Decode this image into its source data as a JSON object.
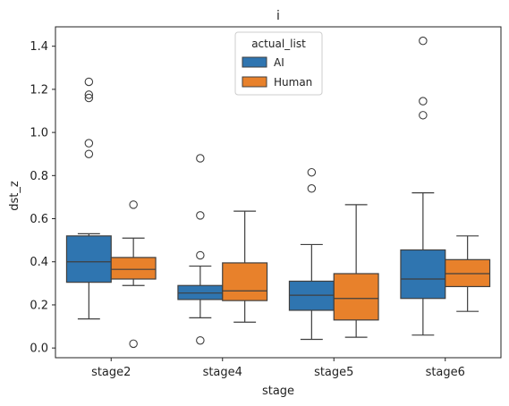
{
  "chart_data": {
    "type": "box",
    "title": "i",
    "xlabel": "stage",
    "ylabel": "dst_z",
    "categories": [
      "stage2",
      "stage4",
      "stage5",
      "stage6"
    ],
    "ylim": [
      -0.045,
      1.49
    ],
    "yticks": [
      0.0,
      0.2,
      0.4,
      0.6,
      0.8,
      1.0,
      1.2,
      1.4
    ],
    "ytick_labels": [
      "0.0",
      "0.2",
      "0.4",
      "0.6",
      "0.8",
      "1.0",
      "1.2",
      "1.4"
    ],
    "grid": false,
    "legend": {
      "title": "actual_list",
      "placement": "top-center",
      "entries": [
        "AI",
        "Human"
      ]
    },
    "series": [
      {
        "name": "AI",
        "color": "#2f75b0",
        "boxes": [
          {
            "whisker_low": 0.135,
            "q1": 0.305,
            "median": 0.4,
            "q3": 0.52,
            "whisker_high": 0.53,
            "outliers": [
              1.235,
              1.175,
              1.16,
              0.95,
              0.9
            ]
          },
          {
            "whisker_low": 0.14,
            "q1": 0.225,
            "median": 0.255,
            "q3": 0.29,
            "whisker_high": 0.38,
            "outliers": [
              0.88,
              0.615,
              0.43,
              0.035
            ]
          },
          {
            "whisker_low": 0.04,
            "q1": 0.175,
            "median": 0.245,
            "q3": 0.31,
            "whisker_high": 0.48,
            "outliers": [
              0.815,
              0.74
            ]
          },
          {
            "whisker_low": 0.06,
            "q1": 0.23,
            "median": 0.32,
            "q3": 0.455,
            "whisker_high": 0.72,
            "outliers": [
              1.425,
              1.145,
              1.08
            ]
          }
        ]
      },
      {
        "name": "Human",
        "color": "#e8812b",
        "boxes": [
          {
            "whisker_low": 0.29,
            "q1": 0.32,
            "median": 0.365,
            "q3": 0.42,
            "whisker_high": 0.51,
            "outliers": [
              0.665,
              0.02
            ]
          },
          {
            "whisker_low": 0.12,
            "q1": 0.22,
            "median": 0.265,
            "q3": 0.395,
            "whisker_high": 0.635,
            "outliers": []
          },
          {
            "whisker_low": 0.05,
            "q1": 0.13,
            "median": 0.23,
            "q3": 0.345,
            "whisker_high": 0.665,
            "outliers": []
          },
          {
            "whisker_low": 0.17,
            "q1": 0.285,
            "median": 0.345,
            "q3": 0.41,
            "whisker_high": 0.52,
            "outliers": []
          }
        ]
      }
    ]
  }
}
